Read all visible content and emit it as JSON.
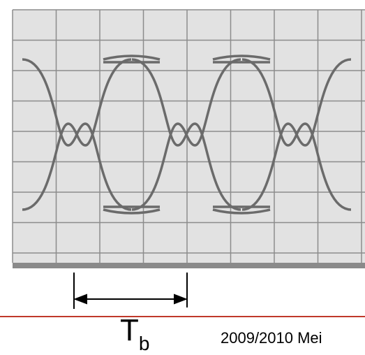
{
  "label": {
    "main": "T",
    "sub": "b"
  },
  "footer": "2009/2010 Mei"
}
